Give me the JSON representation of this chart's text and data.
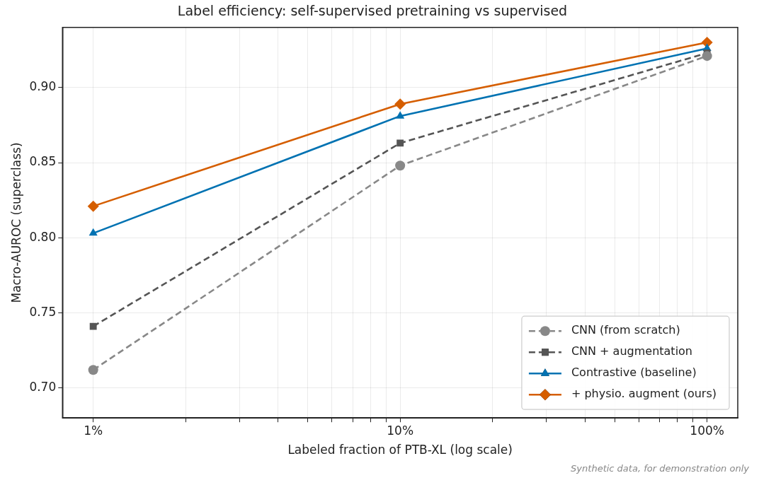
{
  "chart_data": {
    "type": "line",
    "title": "Label efficiency: self-supervised pretraining vs supervised",
    "xlabel": "Labeled fraction of PTB-XL (log scale)",
    "ylabel": "Macro-AUROC (superclass)",
    "x": [
      1,
      10,
      100
    ],
    "series": [
      {
        "name": "CNN (from scratch)",
        "color": "#888888",
        "values": [
          0.712,
          0.848,
          0.921
        ],
        "marker": "circle",
        "line_style": "dashed"
      },
      {
        "name": "CNN + augmentation",
        "color": "#555555",
        "values": [
          0.741,
          0.863,
          0.923
        ],
        "marker": "square",
        "line_style": "dashed"
      },
      {
        "name": "Contrastive (baseline)",
        "color": "#0072b2",
        "values": [
          0.803,
          0.881,
          0.926
        ],
        "marker": "triangle",
        "line_style": "solid"
      },
      {
        "name": "+ physio. augment (ours)",
        "color": "#d55e00",
        "values": [
          0.821,
          0.889,
          0.93
        ],
        "marker": "diamond",
        "line_style": "solid"
      }
    ],
    "log": "x",
    "xlim": [
      0.794,
      125.9
    ],
    "xticks": [
      {
        "value": 1,
        "label": "1%"
      },
      {
        "value": 2,
        "label": null
      },
      {
        "value": 3,
        "label": null
      },
      {
        "value": 4,
        "label": null
      },
      {
        "value": 5,
        "label": null
      },
      {
        "value": 6,
        "label": null
      },
      {
        "value": 7,
        "label": null
      },
      {
        "value": 8,
        "label": null
      },
      {
        "value": 9,
        "label": null
      },
      {
        "value": 10,
        "label": "10%"
      },
      {
        "value": 20,
        "label": null
      },
      {
        "value": 30,
        "label": null
      },
      {
        "value": 40,
        "label": null
      },
      {
        "value": 50,
        "label": null
      },
      {
        "value": 60,
        "label": null
      },
      {
        "value": 70,
        "label": null
      },
      {
        "value": 80,
        "label": null
      },
      {
        "value": 90,
        "label": null
      },
      {
        "value": 100,
        "label": "100%"
      }
    ],
    "ylim": [
      0.68,
      0.94
    ],
    "yticks": [
      {
        "value": 0.7,
        "label": "0.70"
      },
      {
        "value": 0.75,
        "label": "0.75"
      },
      {
        "value": 0.8,
        "label": "0.80"
      },
      {
        "value": 0.85,
        "label": "0.85"
      },
      {
        "value": 0.9,
        "label": "0.90"
      }
    ],
    "grid": true,
    "legend": "bottom right",
    "annotations": [
      "Synthetic data, for demonstration only"
    ]
  }
}
